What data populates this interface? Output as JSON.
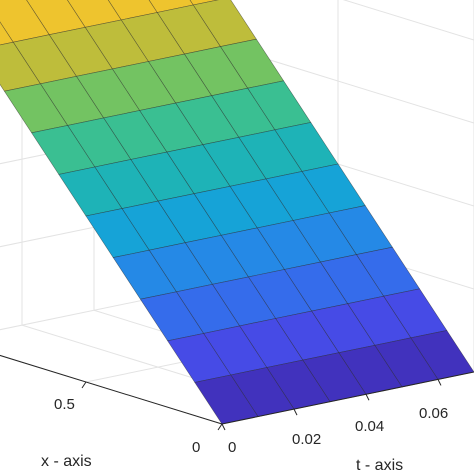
{
  "chart_data": {
    "type": "surface",
    "title": "",
    "xlabel": "t - axis",
    "ylabel": "x - axis",
    "t_ticks": [
      "0",
      "0.02",
      "0.04",
      "0.06"
    ],
    "x_ticks": [
      "0",
      "0.5"
    ],
    "t_range": [
      0,
      0.07
    ],
    "x_range": [
      0,
      1
    ],
    "grid": true,
    "colormap": "parula",
    "surface": {
      "t": [
        0,
        0.01,
        0.02,
        0.03,
        0.04,
        0.05,
        0.06,
        0.07
      ],
      "x": [
        0,
        0.1,
        0.2,
        0.3,
        0.4,
        0.5,
        0.6,
        0.7,
        0.8,
        0.9,
        1.0
      ],
      "z_by_x": [
        0.0,
        0.1,
        0.2,
        0.3,
        0.4,
        0.5,
        0.6,
        0.7,
        0.8,
        0.9,
        1.0
      ]
    }
  }
}
